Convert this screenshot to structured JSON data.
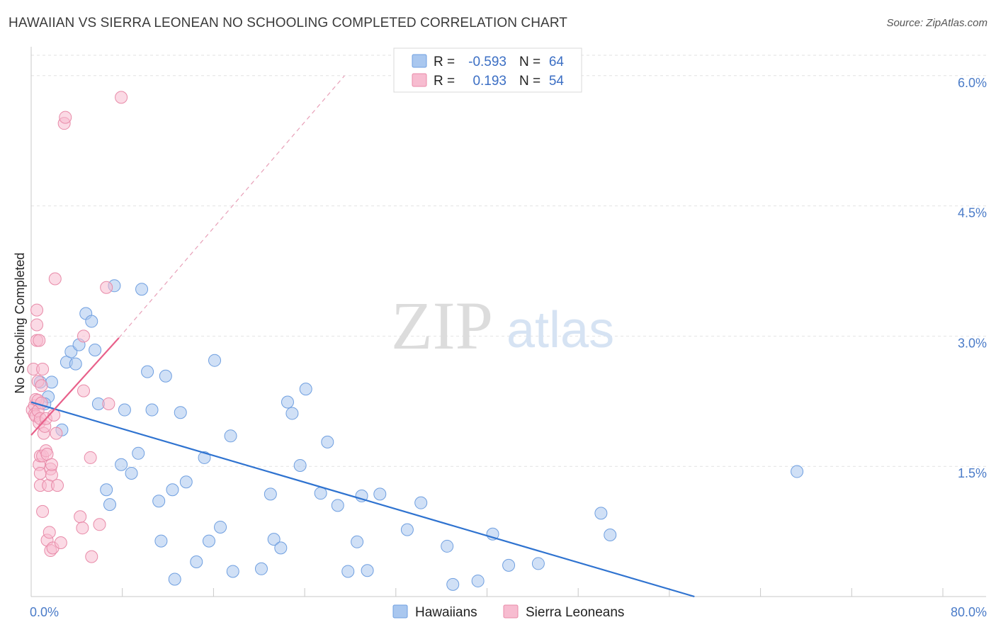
{
  "header": {
    "title": "HAWAIIAN VS SIERRA LEONEAN NO SCHOOLING COMPLETED CORRELATION CHART",
    "source": "Source: ZipAtlas.com"
  },
  "watermark": {
    "zip": "ZIP",
    "atlas": "atlas"
  },
  "legend": {
    "r_label": "R =",
    "n_label": "N =",
    "rows": [
      {
        "r": "-0.593",
        "n": "64",
        "color": "#a9c7ef",
        "stroke": "#6f9fe0"
      },
      {
        "r": "0.193",
        "n": "54",
        "color": "#f7bcd0",
        "stroke": "#e88aa8"
      }
    ]
  },
  "bottom_legend": [
    {
      "label": "Hawaiians",
      "color": "#a9c7ef",
      "stroke": "#6f9fe0"
    },
    {
      "label": "Sierra Leoneans",
      "color": "#f7bcd0",
      "stroke": "#e88aa8"
    }
  ],
  "chart_data": {
    "type": "scatter",
    "title": "HAWAIIAN VS SIERRA LEONEAN NO SCHOOLING COMPLETED CORRELATION CHART",
    "xlabel": "",
    "ylabel": "No Schooling Completed",
    "xlim": [
      0,
      80
    ],
    "ylim": [
      0,
      6.3
    ],
    "x_tick_labels": [
      "0.0%",
      "80.0%"
    ],
    "y_ticks": [
      1.5,
      3.0,
      4.5,
      6.0
    ],
    "y_tick_labels": [
      "1.5%",
      "3.0%",
      "4.5%",
      "6.0%"
    ],
    "grid": true,
    "series": [
      {
        "name": "Hawaiians",
        "color": "#6f9fe0",
        "fill": "#a9c7ef",
        "r": -0.593,
        "n": 64,
        "trend": {
          "x": [
            0,
            58.2
          ],
          "y": [
            2.24,
            0.0
          ],
          "color": "#2f73d0"
        },
        "points": [
          [
            0.8,
            2.47
          ],
          [
            1.5,
            2.3
          ],
          [
            1.8,
            2.47
          ],
          [
            1.2,
            2.22
          ],
          [
            2.7,
            1.92
          ],
          [
            3.1,
            2.7
          ],
          [
            3.5,
            2.82
          ],
          [
            3.9,
            2.68
          ],
          [
            4.2,
            2.9
          ],
          [
            4.8,
            3.26
          ],
          [
            5.3,
            3.17
          ],
          [
            5.6,
            2.84
          ],
          [
            5.9,
            2.22
          ],
          [
            7.3,
            3.58
          ],
          [
            6.6,
            1.23
          ],
          [
            6.9,
            1.06
          ],
          [
            7.9,
            1.52
          ],
          [
            8.2,
            2.15
          ],
          [
            8.8,
            1.42
          ],
          [
            9.4,
            1.65
          ],
          [
            9.7,
            3.54
          ],
          [
            10.2,
            2.59
          ],
          [
            10.6,
            2.15
          ],
          [
            11.2,
            1.1
          ],
          [
            11.4,
            0.64
          ],
          [
            11.8,
            2.54
          ],
          [
            12.4,
            1.23
          ],
          [
            12.6,
            0.2
          ],
          [
            13.1,
            2.12
          ],
          [
            13.6,
            1.32
          ],
          [
            14.5,
            0.4
          ],
          [
            15.2,
            1.6
          ],
          [
            15.6,
            0.64
          ],
          [
            16.1,
            2.72
          ],
          [
            16.6,
            0.8
          ],
          [
            17.5,
            1.85
          ],
          [
            17.7,
            0.29
          ],
          [
            20.2,
            0.32
          ],
          [
            21.0,
            1.18
          ],
          [
            21.3,
            0.66
          ],
          [
            21.9,
            0.56
          ],
          [
            22.5,
            2.24
          ],
          [
            22.9,
            2.11
          ],
          [
            23.6,
            1.51
          ],
          [
            24.1,
            2.39
          ],
          [
            25.4,
            1.19
          ],
          [
            26.0,
            1.78
          ],
          [
            26.9,
            1.05
          ],
          [
            27.8,
            0.29
          ],
          [
            28.6,
            0.63
          ],
          [
            29.0,
            1.16
          ],
          [
            29.5,
            0.3
          ],
          [
            30.6,
            1.18
          ],
          [
            33.0,
            0.77
          ],
          [
            34.2,
            1.08
          ],
          [
            36.5,
            0.58
          ],
          [
            37.0,
            0.14
          ],
          [
            39.2,
            0.18
          ],
          [
            40.5,
            0.72
          ],
          [
            41.9,
            0.36
          ],
          [
            44.5,
            0.38
          ],
          [
            50.0,
            0.96
          ],
          [
            50.8,
            0.71
          ],
          [
            67.2,
            1.44
          ]
        ]
      },
      {
        "name": "Sierra Leoneans",
        "color": "#e88aa8",
        "fill": "#f7bcd0",
        "r": 0.193,
        "n": 54,
        "trend": {
          "x": [
            0,
            7.7
          ],
          "y": [
            1.86,
            2.98
          ],
          "color": "#e8608a"
        },
        "trend_ext": {
          "x": [
            7.7,
            27.5
          ],
          "y": [
            2.98,
            6.0
          ]
        },
        "points": [
          [
            0.1,
            2.15
          ],
          [
            0.2,
            2.62
          ],
          [
            0.3,
            2.2
          ],
          [
            0.3,
            2.1
          ],
          [
            0.4,
            2.27
          ],
          [
            0.4,
            2.08
          ],
          [
            0.5,
            3.3
          ],
          [
            0.5,
            3.13
          ],
          [
            0.5,
            2.95
          ],
          [
            0.6,
            2.48
          ],
          [
            0.6,
            2.26
          ],
          [
            0.6,
            2.14
          ],
          [
            0.7,
            2.95
          ],
          [
            0.7,
            2.0
          ],
          [
            0.7,
            1.52
          ],
          [
            0.8,
            2.05
          ],
          [
            0.8,
            1.62
          ],
          [
            0.8,
            1.42
          ],
          [
            0.8,
            1.28
          ],
          [
            0.9,
            2.43
          ],
          [
            0.9,
            2.23
          ],
          [
            1.0,
            1.62
          ],
          [
            1.0,
            0.98
          ],
          [
            1.0,
            2.62
          ],
          [
            1.1,
            1.88
          ],
          [
            1.2,
            1.96
          ],
          [
            1.3,
            2.05
          ],
          [
            1.3,
            1.68
          ],
          [
            1.4,
            0.65
          ],
          [
            1.4,
            1.64
          ],
          [
            1.5,
            1.28
          ],
          [
            1.6,
            0.74
          ],
          [
            1.7,
            1.47
          ],
          [
            1.7,
            0.53
          ],
          [
            1.8,
            1.4
          ],
          [
            1.8,
            1.52
          ],
          [
            1.9,
            0.56
          ],
          [
            2.0,
            2.09
          ],
          [
            2.1,
            3.66
          ],
          [
            2.2,
            1.88
          ],
          [
            2.3,
            1.28
          ],
          [
            2.6,
            0.62
          ],
          [
            2.9,
            5.45
          ],
          [
            3.0,
            5.52
          ],
          [
            4.3,
            0.92
          ],
          [
            4.5,
            0.79
          ],
          [
            4.6,
            2.37
          ],
          [
            4.6,
            3.0
          ],
          [
            5.2,
            1.6
          ],
          [
            5.3,
            0.46
          ],
          [
            6.0,
            0.83
          ],
          [
            6.6,
            3.56
          ],
          [
            6.8,
            2.22
          ],
          [
            7.9,
            5.75
          ]
        ]
      }
    ]
  }
}
